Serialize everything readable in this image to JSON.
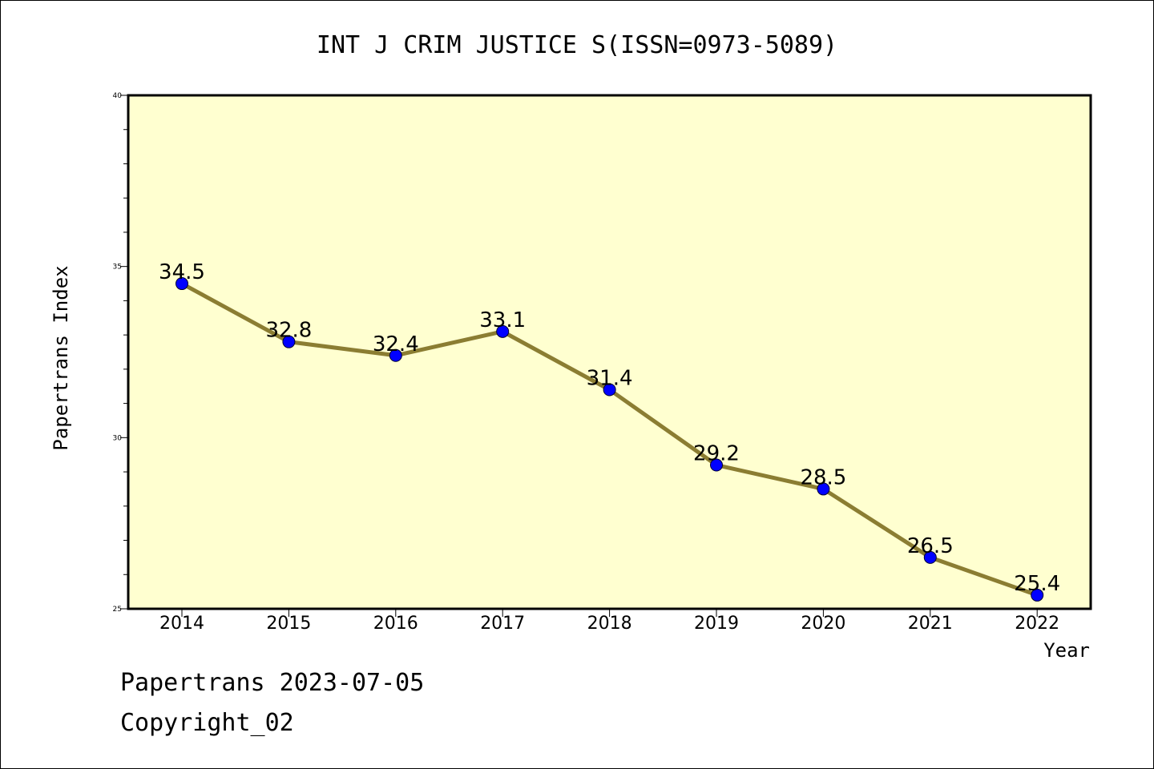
{
  "chart_data": {
    "type": "line",
    "title": "INT J CRIM JUSTICE S(ISSN=0973-5089)",
    "xlabel": "Year",
    "ylabel": "Papertrans Index",
    "categories": [
      "2014",
      "2015",
      "2016",
      "2017",
      "2018",
      "2019",
      "2020",
      "2021",
      "2022"
    ],
    "series": [
      {
        "values": [
          34.5,
          32.8,
          32.4,
          33.1,
          31.4,
          29.2,
          28.5,
          26.5,
          25.4
        ],
        "data_labels": [
          "34.5",
          "32.8",
          "32.4",
          "33.1",
          "31.4",
          "29.2",
          "28.5",
          "26.5",
          "25.4"
        ]
      }
    ],
    "ylim": [
      25,
      40
    ],
    "y_ticks": [
      25,
      30,
      35,
      40
    ],
    "y_tick_labels": [
      "25",
      "30",
      "35",
      "40"
    ],
    "grid": false,
    "colors": {
      "plot_background": "#ffffd0",
      "line": "#8b7d32",
      "marker": "#0000ff"
    }
  },
  "footer": {
    "line1": "Papertrans 2023-07-05",
    "line2": "Copyright_02"
  }
}
